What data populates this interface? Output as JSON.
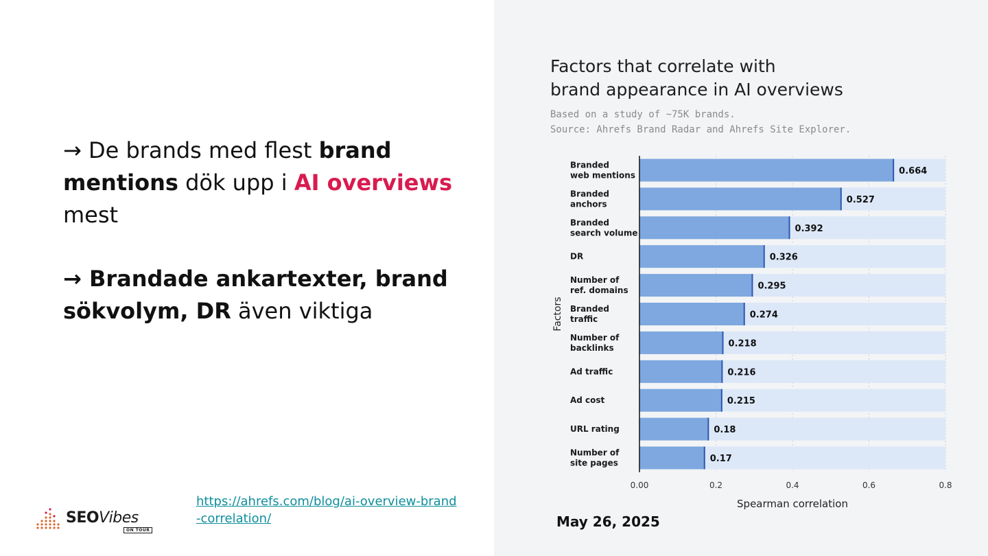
{
  "slide": {
    "bullet1": {
      "pre": "→ De brands med flest ",
      "bold": "brand mentions",
      "mid": " dök upp i ",
      "highlight": "AI overviews",
      "post": " mest"
    },
    "bullet2": {
      "bold": "→ Brandade ankartexter, brand sökvolym, DR",
      "post": " även viktiga"
    },
    "link": "https://ahrefs.com/blog/ai-overview-brand-correlation/",
    "logo": {
      "seo": "SEO",
      "vibes": "Vibes",
      "tour": "ON TOUR"
    },
    "date": "May 26, 2025",
    "colors": {
      "highlight": "#d81b4f",
      "link": "#0e8f9c",
      "bar": "#7ea8df",
      "bar_track": "#dce8f8",
      "bar_edge": "#2f56b0"
    }
  },
  "chart_data": {
    "type": "bar",
    "orientation": "horizontal",
    "title": "Factors that correlate with\nbrand appearance in AI overviews",
    "subtitle": "Based on a study of ~75K brands.\nSource: Ahrefs Brand Radar and Ahrefs Site Explorer.",
    "xlabel": "Spearman correlation",
    "ylabel": "Factors",
    "xlim": [
      0,
      0.8
    ],
    "xticks": [
      0,
      0.2,
      0.4,
      0.6,
      0.8
    ],
    "xtick_labels": [
      "0.00",
      "0.2",
      "0.4",
      "0.6",
      "0.8"
    ],
    "categories": [
      [
        "Branded",
        "web mentions"
      ],
      [
        "Branded",
        "anchors"
      ],
      [
        "Branded",
        "search volume"
      ],
      [
        "DR"
      ],
      [
        "Number of",
        "ref. domains"
      ],
      [
        "Branded",
        "traffic"
      ],
      [
        "Number of",
        "backlinks"
      ],
      [
        "Ad traffic"
      ],
      [
        "Ad cost"
      ],
      [
        "URL rating"
      ],
      [
        "Number of",
        "site pages"
      ]
    ],
    "values": [
      0.664,
      0.527,
      0.392,
      0.326,
      0.295,
      0.274,
      0.218,
      0.216,
      0.215,
      0.18,
      0.17
    ],
    "value_labels": [
      "0.664",
      "0.527",
      "0.392",
      "0.326",
      "0.295",
      "0.274",
      "0.218",
      "0.216",
      "0.215",
      "0.18",
      "0.17"
    ],
    "grid": true,
    "legend": "none"
  }
}
